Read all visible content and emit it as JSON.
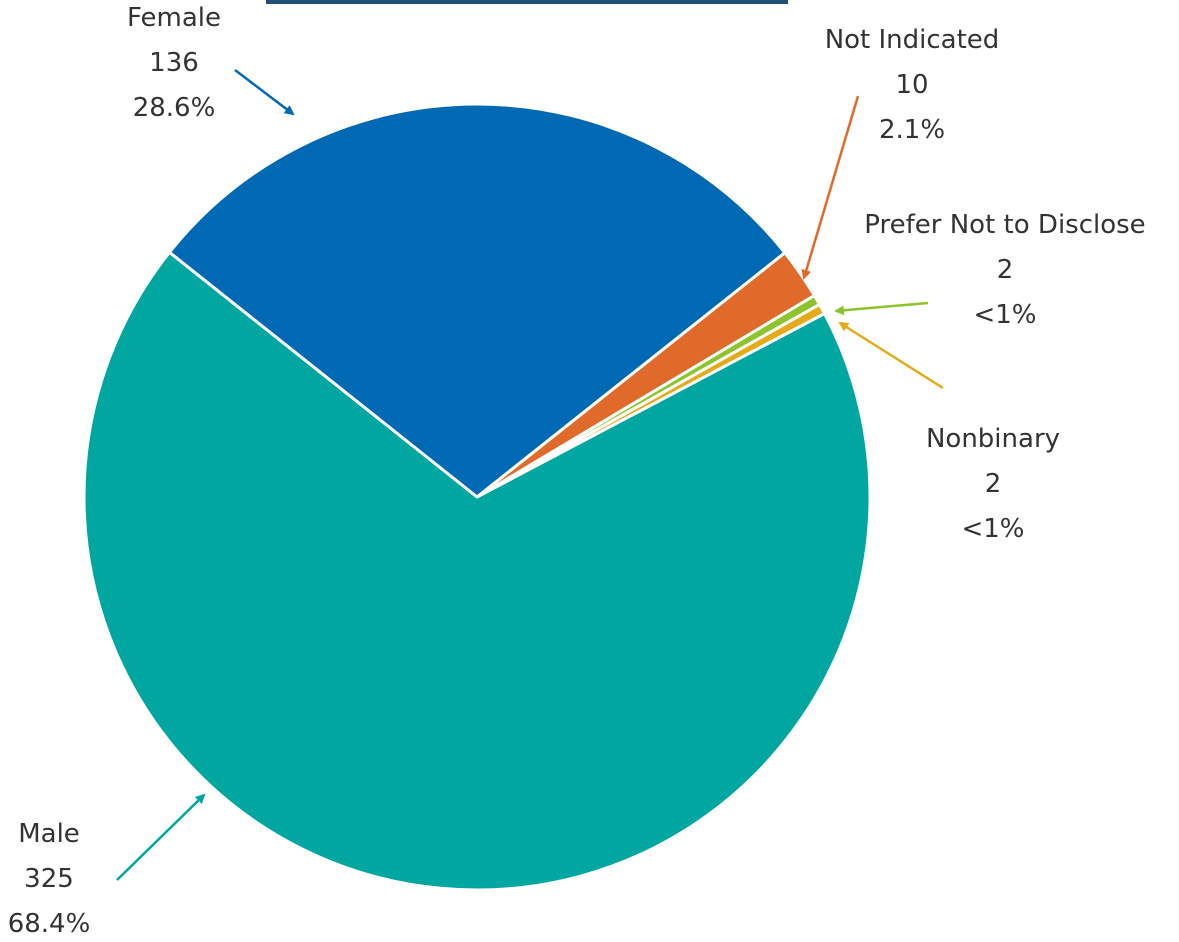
{
  "chart_data": {
    "type": "pie",
    "title": "",
    "slices": [
      {
        "name": "Female",
        "value": 136,
        "count_label": "136",
        "percent_label": "28.6%",
        "color": "#0069B4"
      },
      {
        "name": "Not Indicated",
        "value": 10,
        "count_label": "10",
        "percent_label": "2.1%",
        "color": "#E06A2A"
      },
      {
        "name": "Prefer Not to Disclose",
        "value": 2,
        "count_label": "2",
        "percent_label": "<1%",
        "color": "#8DC32B"
      },
      {
        "name": "Nonbinary",
        "value": 2,
        "count_label": "2",
        "percent_label": "<1%",
        "color": "#E5AA17"
      },
      {
        "name": "Male",
        "value": 325,
        "count_label": "325",
        "percent_label": "68.4%",
        "color": "#00A6A0"
      }
    ],
    "start_angle_deg": -51.5,
    "direction": "clockwise",
    "legend": "none",
    "slice_border_color": "#ffffff"
  },
  "decor": {
    "top_rule_color": "#1F4E79"
  }
}
